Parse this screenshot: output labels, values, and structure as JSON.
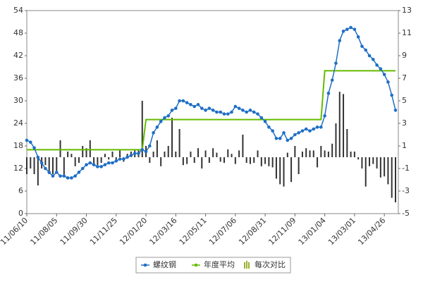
{
  "chart_data": {
    "type": "line",
    "categories": [
      "11/06/10",
      null,
      null,
      null,
      null,
      null,
      null,
      null,
      "11/08/05",
      null,
      null,
      null,
      null,
      null,
      null,
      null,
      "11/09/30",
      null,
      null,
      null,
      null,
      null,
      null,
      null,
      "11/11/25",
      null,
      null,
      null,
      null,
      null,
      null,
      null,
      "12/01/20",
      null,
      null,
      null,
      null,
      null,
      null,
      null,
      "12/03/16",
      null,
      null,
      null,
      null,
      null,
      null,
      null,
      "12/05/11",
      null,
      null,
      null,
      null,
      null,
      null,
      null,
      "12/07/06",
      null,
      null,
      null,
      null,
      null,
      null,
      null,
      "12/08/31",
      null,
      null,
      null,
      null,
      null,
      null,
      null,
      "12/11/09",
      null,
      null,
      null,
      null,
      null,
      null,
      null,
      "13/01/04",
      null,
      null,
      null,
      null,
      null,
      null,
      null,
      "13/03/01",
      null,
      null,
      null,
      null,
      null,
      null,
      null,
      "13/04/26",
      null,
      null,
      null
    ],
    "series": [
      {
        "name": "螺纹钢",
        "type": "line",
        "color": "#1f6fc5",
        "values": [
          19.5,
          19,
          17.5,
          15,
          13.5,
          12,
          11,
          10,
          11,
          10,
          10,
          9.5,
          9.5,
          10,
          11,
          12,
          13,
          13.5,
          13,
          12.5,
          12.5,
          13,
          13.5,
          13.5,
          14,
          14.5,
          14.5,
          15,
          15.5,
          16,
          16,
          17,
          16.5,
          18,
          21.5,
          23,
          24.5,
          25.5,
          26,
          27.5,
          28,
          30,
          30,
          29.5,
          29,
          28.5,
          29,
          28,
          27.5,
          28,
          27.5,
          27,
          27,
          26.5,
          26.5,
          27,
          28.5,
          28,
          27.5,
          27,
          27.5,
          27,
          26.5,
          25.5,
          24.5,
          23,
          22,
          20,
          20,
          21.5,
          19.5,
          20,
          21,
          21.5,
          22,
          22.5,
          22,
          22.5,
          23,
          23,
          26,
          32,
          35.5,
          40,
          46,
          48.5,
          49,
          49.5,
          49,
          47,
          44.5,
          43.5,
          42,
          41,
          39.5,
          38.5,
          37,
          35,
          31.5,
          27.5
        ]
      },
      {
        "name": "年度平均",
        "type": "step",
        "color": "#66bb00",
        "values": [
          17,
          17,
          17,
          17,
          17,
          17,
          17,
          17,
          17,
          17,
          17,
          17,
          17,
          17,
          17,
          17,
          17,
          17,
          17,
          17,
          17,
          17,
          17,
          17,
          17,
          17,
          17,
          17,
          17,
          17,
          17,
          17,
          25,
          25,
          25,
          25,
          25,
          25,
          25,
          25,
          25,
          25,
          25,
          25,
          25,
          25,
          25,
          25,
          25,
          25,
          25,
          25,
          25,
          25,
          25,
          25,
          25,
          25,
          25,
          25,
          25,
          25,
          25,
          25,
          25,
          25,
          25,
          25,
          25,
          25,
          25,
          25,
          25,
          25,
          25,
          25,
          25,
          25,
          25,
          25,
          38,
          38,
          38,
          38,
          38,
          38,
          38,
          38,
          38,
          38,
          38,
          38,
          38,
          38,
          38,
          38,
          38,
          38,
          38,
          38
        ]
      },
      {
        "name": "每次对比",
        "type": "bar",
        "axis": "y2",
        "color": "#333333",
        "values": [
          -1.5,
          -1,
          -1.5,
          -2.5,
          -1,
          -0.7,
          -1.5,
          -1.5,
          -1.2,
          1.5,
          -1.7,
          0.5,
          0.3,
          -0.8,
          -0.5,
          1,
          0.8,
          1.5,
          -0.6,
          -0.7,
          -0.5,
          0.3,
          -0.2,
          0.5,
          -0.3,
          0.6,
          -0.4,
          0.3,
          0.5,
          0.6,
          0.7,
          5,
          1,
          -0.5,
          0.5,
          1.5,
          -0.8,
          0.5,
          1,
          3.5,
          0.5,
          2.5,
          -0.7,
          -0.6,
          0.5,
          -0.5,
          0.8,
          -1,
          0.6,
          -0.5,
          0.8,
          0.4,
          -0.4,
          -0.5,
          0.7,
          0.3,
          -0.6,
          0.6,
          2,
          -0.5,
          -0.6,
          -0.5,
          0.6,
          -0.8,
          -0.6,
          -0.8,
          -0.9,
          -1.9,
          -2.4,
          -2.6,
          0.4,
          -2.2,
          1,
          -1.5,
          0.5,
          0.8,
          0.6,
          0.6,
          -0.9,
          1,
          0.6,
          0.5,
          1.2,
          3,
          5.8,
          5.6,
          2.5,
          0.5,
          0.5,
          -0.2,
          -1,
          -2.6,
          -0.8,
          -0.6,
          -1,
          -1.8,
          -1.7,
          -2.4,
          -3.6,
          -4
        ]
      }
    ],
    "ylim": [
      0,
      54
    ],
    "yticks": [
      0,
      6,
      12,
      18,
      24,
      30,
      36,
      42,
      48,
      54
    ],
    "y2lim": [
      -5,
      13
    ],
    "y2ticks": [
      -5,
      -3,
      -1,
      1,
      3,
      5,
      7,
      9,
      11,
      13
    ],
    "grid": false
  }
}
